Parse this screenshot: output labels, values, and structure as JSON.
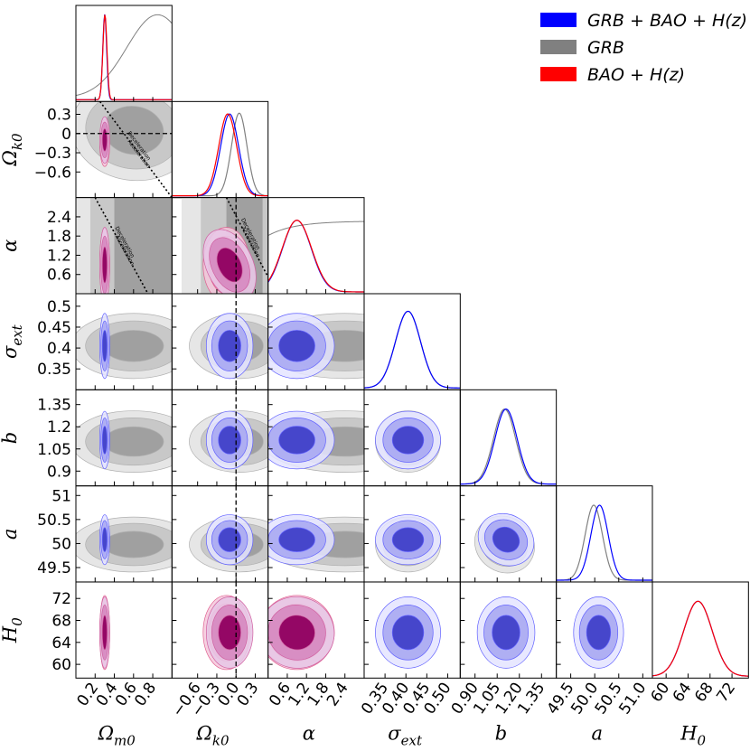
{
  "chart_data": {
    "type": "corner",
    "parameters": [
      {
        "name": "Omega_m0",
        "label": "Ω_m0",
        "x_range": [
          0.0,
          1.0
        ],
        "y_range": null,
        "ticks": [
          0.2,
          0.4,
          0.6,
          0.8
        ],
        "tick_labels": [
          "0.2",
          "0.4",
          "0.6",
          "0.8"
        ]
      },
      {
        "name": "Omega_k0",
        "label": "Ω_k0",
        "x_range": [
          -1.0,
          0.5
        ],
        "y_range": [
          -1.0,
          0.5
        ],
        "ticks": [
          -0.6,
          -0.3,
          0.0,
          0.3
        ],
        "tick_labels": [
          "−0.6",
          "−0.3",
          "0.0",
          "0.3"
        ],
        "y_tick_labels": [
          "−0.6",
          "−0.3",
          "0",
          "0.3"
        ]
      },
      {
        "name": "alpha",
        "label": "α",
        "x_range": [
          0.0,
          3.0
        ],
        "y_range": [
          0.0,
          3.0
        ],
        "ticks": [
          0.6,
          1.2,
          1.8,
          2.4
        ],
        "tick_labels": [
          "0.6",
          "1.2",
          "1.8",
          "2.4"
        ]
      },
      {
        "name": "sigma_ext",
        "label": "σ_ext",
        "x_range": [
          0.3,
          0.53
        ],
        "y_range": [
          0.3,
          0.53
        ],
        "ticks": [
          0.35,
          0.4,
          0.45,
          0.5
        ],
        "tick_labels": [
          "0.35",
          "0.40",
          "0.45",
          "0.50"
        ],
        "y_tick_labels": [
          "0.35",
          "0.4",
          "0.45",
          "0.5"
        ]
      },
      {
        "name": "b",
        "label": "b",
        "x_range": [
          0.8,
          1.45
        ],
        "y_range": [
          0.8,
          1.45
        ],
        "ticks": [
          0.9,
          1.05,
          1.2,
          1.35
        ],
        "tick_labels": [
          "0.90",
          "1.05",
          "1.20",
          "1.35"
        ],
        "y_tick_labels": [
          "0.9",
          "1.05",
          "1.2",
          "1.35"
        ]
      },
      {
        "name": "a",
        "label": "a",
        "x_range": [
          49.2,
          51.2
        ],
        "y_range": [
          49.2,
          51.2
        ],
        "ticks": [
          49.5,
          50.0,
          50.5,
          51.0
        ],
        "tick_labels": [
          "49.5",
          "50.0",
          "50.5",
          "51.0"
        ],
        "y_tick_labels": [
          "49.5",
          "50",
          "50.5",
          "51"
        ]
      },
      {
        "name": "H0",
        "label": "H_0",
        "x_range": [
          57.5,
          75.0
        ],
        "y_range": [
          57.5,
          75.0
        ],
        "ticks": [
          60,
          64,
          68,
          72
        ],
        "tick_labels": [
          "60",
          "64",
          "68",
          "72"
        ]
      }
    ],
    "axis_label_text": {
      "Omega_m0": {
        "main": "Ω",
        "sub": "m0"
      },
      "Omega_k0": {
        "main": "Ω",
        "sub": "k0"
      },
      "alpha": {
        "main": "α",
        "sub": ""
      },
      "sigma_ext": {
        "main": "σ",
        "sub": "ext"
      },
      "b": {
        "main": "b",
        "sub": ""
      },
      "a": {
        "main": "a",
        "sub": ""
      },
      "H0": {
        "main": "H",
        "sub": "0"
      }
    },
    "series": [
      {
        "name": "GRB + BAO + H(z)",
        "legend_label": "GRB + BAO + H(z)",
        "color": "#0000ff",
        "means": {
          "Omega_m0": 0.3,
          "Omega_k0": -0.1,
          "alpha": 0.9,
          "sigma_ext": 0.405,
          "b": 1.11,
          "a": 50.08,
          "H0": 65.8
        },
        "sigmas": {
          "Omega_m0": 0.02,
          "Omega_k0": 0.14,
          "alpha": 0.45,
          "sigma_ext": 0.03,
          "b": 0.075,
          "a": 0.2,
          "H0": 2.5
        }
      },
      {
        "name": "GRB",
        "legend_label": "GRB",
        "color": "#808080",
        "means": {
          "Omega_m0": 0.6,
          "Omega_k0": 0.05,
          "alpha": 2.4,
          "sigma_ext": 0.405,
          "b": 1.1,
          "a": 49.98
        },
        "sigmas": {
          "Omega_m0": 0.25,
          "Omega_k0": 0.3,
          "alpha": 1.0,
          "sigma_ext": 0.03,
          "b": 0.08,
          "a": 0.22
        }
      },
      {
        "name": "BAO + H(z)",
        "legend_label": "BAO + H(z)",
        "color": "#ff0000",
        "means": {
          "Omega_m0": 0.3,
          "Omega_k0": -0.15,
          "alpha": 0.9,
          "H0": 65.8
        },
        "sigmas": {
          "Omega_m0": 0.02,
          "Omega_k0": 0.14,
          "alpha": 0.45,
          "H0": 2.6
        }
      }
    ],
    "reference_lines": [
      {
        "param": "Omega_k0",
        "value": 0.0,
        "style": "dashed"
      }
    ],
    "annotations": [
      {
        "panel": "Omega_k0 vs Omega_m0",
        "text": "Deceleration",
        "text2": "Acceleration"
      },
      {
        "panel": "alpha vs Omega_m0",
        "text": "Deceleration",
        "text2": "Acceleration"
      },
      {
        "panel": "alpha vs Omega_k0",
        "text": "Deceleration",
        "text2": "Acceleration"
      }
    ],
    "legend": {
      "placement": "top-right"
    },
    "grid": false
  }
}
